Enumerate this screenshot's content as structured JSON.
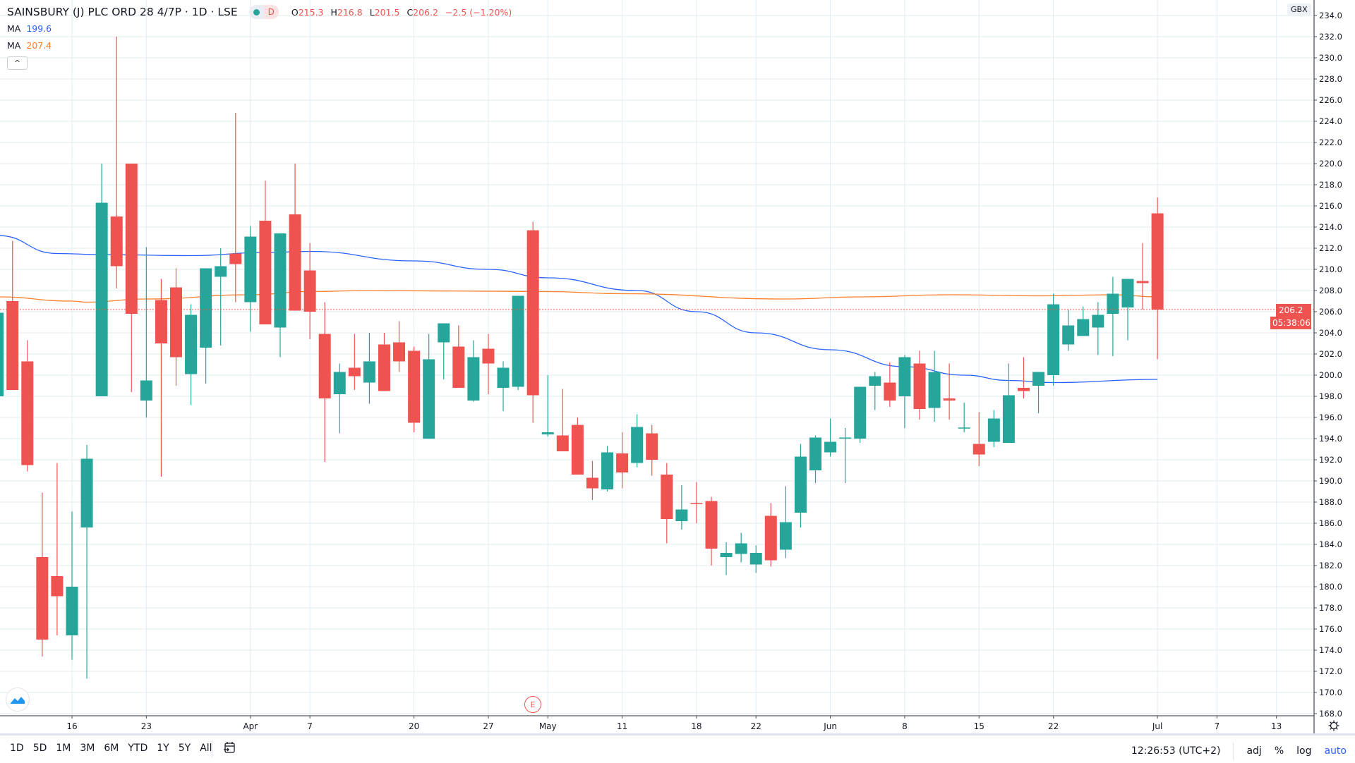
{
  "legend": {
    "title": "SAINSBURY (J) PLC ORD 28 4/7P · 1D · LSE",
    "status_letter": "D",
    "o_label": "O",
    "o_value": "215.3",
    "h_label": "H",
    "h_value": "216.8",
    "l_label": "L",
    "l_value": "201.5",
    "c_label": "C",
    "c_value": "206.2",
    "change": "−2.5 (−1.20%)",
    "ma1_label": "MA",
    "ma1_value": "199.6",
    "ma2_label": "MA",
    "ma2_value": "207.4",
    "collapse_icon": "^"
  },
  "price_axis": {
    "currency": "GBX",
    "last_price": "206.2",
    "countdown": "05:38:06"
  },
  "earnings_marker": "E",
  "toolbar": {
    "ranges": [
      "1D",
      "5D",
      "1M",
      "3M",
      "6M",
      "YTD",
      "1Y",
      "5Y",
      "All"
    ],
    "time": "12:26:53 (UTC+2)",
    "adj": "adj",
    "percent": "%",
    "log": "log",
    "auto": "auto"
  },
  "colors": {
    "up": "#26a69a",
    "down": "#ef5350",
    "ma_fast": "#2962ff",
    "ma_slow": "#ff7f27",
    "grid": "#e1ecf2"
  },
  "chart_data": {
    "type": "candlestick",
    "title": "SAINSBURY (J) PLC ORD 28 4/7P · 1D · LSE",
    "ylim": [
      167.2,
      235
    ],
    "yticks": [
      168,
      170,
      172,
      174,
      176,
      178,
      180,
      182,
      184,
      186,
      188,
      190,
      192,
      194,
      196,
      198,
      200,
      202,
      204,
      206,
      208,
      210,
      212,
      214,
      216,
      218,
      220,
      222,
      224,
      226,
      228,
      230,
      232,
      234
    ],
    "xticks": [
      {
        "index": 0,
        "label": "16"
      },
      {
        "index": 5,
        "label": "23"
      },
      {
        "index": 12,
        "label": "Apr"
      },
      {
        "index": 16,
        "label": "7"
      },
      {
        "index": 23,
        "label": "20"
      },
      {
        "index": 28,
        "label": "27"
      },
      {
        "index": 32,
        "label": "May"
      },
      {
        "index": 37,
        "label": "11"
      },
      {
        "index": 42,
        "label": "18"
      },
      {
        "index": 46,
        "label": "22"
      },
      {
        "index": 51,
        "label": "Jun"
      },
      {
        "index": 56,
        "label": "8"
      },
      {
        "index": 61,
        "label": "15"
      },
      {
        "index": 66,
        "label": "22"
      },
      {
        "index": 73,
        "label": "Jul"
      },
      {
        "index": 77,
        "label": "7"
      },
      {
        "index": 81,
        "label": "13"
      }
    ],
    "first_index": -5,
    "ohlc": [
      [
        198.0,
        206.0,
        197.5,
        205.9
      ],
      [
        207.0,
        212.7,
        198.6,
        198.6
      ],
      [
        201.3,
        203.3,
        190.9,
        191.5
      ],
      [
        182.8,
        188.9,
        173.4,
        175.0
      ],
      [
        181.0,
        191.7,
        175.4,
        179.1
      ],
      [
        175.4,
        187.1,
        173.1,
        180.0
      ],
      [
        185.6,
        193.4,
        171.3,
        192.1
      ],
      [
        198.0,
        220.0,
        198.0,
        216.3
      ],
      [
        215.0,
        232.0,
        208.2,
        210.3
      ],
      [
        220.0,
        220.0,
        198.4,
        205.8
      ],
      [
        197.6,
        212.1,
        196.0,
        199.5
      ],
      [
        207.1,
        209.1,
        190.4,
        203.0
      ],
      [
        208.3,
        210.1,
        199.0,
        201.7
      ],
      [
        200.1,
        206.7,
        197.2,
        205.7
      ],
      [
        202.6,
        210.1,
        199.2,
        210.1
      ],
      [
        209.3,
        212.0,
        202.8,
        210.3
      ],
      [
        211.5,
        224.8,
        206.9,
        210.5
      ],
      [
        206.9,
        214.1,
        204.1,
        213.1
      ],
      [
        214.6,
        218.4,
        204.8,
        204.8
      ],
      [
        204.5,
        213.4,
        201.7,
        213.4
      ],
      [
        215.2,
        220.0,
        206.1,
        206.1
      ],
      [
        209.9,
        212.5,
        203.4,
        206.0
      ],
      [
        203.9,
        206.9,
        191.8,
        197.8
      ],
      [
        198.2,
        201.1,
        194.5,
        200.3
      ],
      [
        200.7,
        203.9,
        198.6,
        199.9
      ],
      [
        199.3,
        204.0,
        197.3,
        201.3
      ],
      [
        202.9,
        204.0,
        198.5,
        198.5
      ],
      [
        203.1,
        205.1,
        200.3,
        201.3
      ],
      [
        202.3,
        202.7,
        194.6,
        195.5
      ],
      [
        194.0,
        203.9,
        194.0,
        201.5
      ],
      [
        203.1,
        204.9,
        199.6,
        204.9
      ],
      [
        202.7,
        204.7,
        198.8,
        198.8
      ],
      [
        197.6,
        203.3,
        197.5,
        201.7
      ],
      [
        202.5,
        203.9,
        198.2,
        201.1
      ],
      [
        198.8,
        201.3,
        196.6,
        200.7
      ],
      [
        198.9,
        207.5,
        198.6,
        207.5
      ],
      [
        213.7,
        214.5,
        195.5,
        198.1
      ],
      [
        194.4,
        200.0,
        194.2,
        194.6
      ],
      [
        194.3,
        198.7,
        192.8,
        192.8
      ],
      [
        195.3,
        196.0,
        190.6,
        190.6
      ],
      [
        190.3,
        191.9,
        188.2,
        189.3
      ],
      [
        189.2,
        193.3,
        189.0,
        192.7
      ],
      [
        192.6,
        194.6,
        189.3,
        190.8
      ],
      [
        191.7,
        196.3,
        191.3,
        195.1
      ],
      [
        194.5,
        195.3,
        190.5,
        192.0
      ],
      [
        190.6,
        191.7,
        184.1,
        186.4
      ],
      [
        186.2,
        189.6,
        185.4,
        187.3
      ],
      [
        187.9,
        189.9,
        186.0,
        187.85
      ],
      [
        188.1,
        188.5,
        182.0,
        183.6
      ],
      [
        182.8,
        184.2,
        181.1,
        183.2
      ],
      [
        183.1,
        185.1,
        182.3,
        184.1
      ],
      [
        182.1,
        183.9,
        181.3,
        183.2
      ],
      [
        186.7,
        187.9,
        181.9,
        182.5
      ],
      [
        183.5,
        189.5,
        182.7,
        186.1
      ],
      [
        187.0,
        193.5,
        185.6,
        192.3
      ],
      [
        191.0,
        194.3,
        189.8,
        194.1
      ],
      [
        192.7,
        195.9,
        192.3,
        193.7
      ],
      [
        194.0,
        195.0,
        189.8,
        194.1
      ],
      [
        194.0,
        198.9,
        193.6,
        198.9
      ],
      [
        199.0,
        200.3,
        196.7,
        199.9
      ],
      [
        199.3,
        201.2,
        197.0,
        197.6
      ],
      [
        198.0,
        201.9,
        195.0,
        201.7
      ],
      [
        201.1,
        202.3,
        195.8,
        196.8
      ],
      [
        196.9,
        202.3,
        195.6,
        200.3
      ],
      [
        197.8,
        201.1,
        195.8,
        197.6
      ],
      [
        195.0,
        197.4,
        194.6,
        195.05
      ],
      [
        193.5,
        196.5,
        191.4,
        192.5
      ],
      [
        193.7,
        196.7,
        193.2,
        195.9
      ],
      [
        193.6,
        201.1,
        193.6,
        198.1
      ],
      [
        198.8,
        201.7,
        197.8,
        198.5
      ],
      [
        199.0,
        200.3,
        196.4,
        200.3
      ],
      [
        200.0,
        207.7,
        199.0,
        206.7
      ],
      [
        202.9,
        206.2,
        202.3,
        204.7
      ],
      [
        203.7,
        206.5,
        203.7,
        205.3
      ],
      [
        204.5,
        206.9,
        201.9,
        205.7
      ],
      [
        205.8,
        209.3,
        201.8,
        207.7
      ],
      [
        206.4,
        209.1,
        203.3,
        209.1
      ],
      [
        208.9,
        212.5,
        206.2,
        208.7
      ],
      [
        215.3,
        216.8,
        201.5,
        206.2
      ]
    ],
    "series": [
      {
        "name": "MA",
        "value": 199.6,
        "points": [
          [
            -5,
            213.2
          ],
          [
            -1,
            211.5
          ],
          [
            2,
            211.4
          ],
          [
            8,
            211.3
          ],
          [
            13,
            211.6
          ],
          [
            16,
            211.7
          ],
          [
            23,
            210.8
          ],
          [
            28,
            210.0
          ],
          [
            32,
            209.2
          ],
          [
            38,
            208.0
          ],
          [
            42,
            206.0
          ],
          [
            46,
            204.0
          ],
          [
            51,
            202.4
          ],
          [
            56,
            200.8
          ],
          [
            60,
            200.0
          ],
          [
            63,
            199.5
          ],
          [
            66,
            199.3
          ],
          [
            73,
            199.6
          ]
        ]
      },
      {
        "name": "MA",
        "value": 207.4,
        "points": [
          [
            -5,
            207.4
          ],
          [
            0,
            207.0
          ],
          [
            1,
            206.9
          ],
          [
            5,
            207.2
          ],
          [
            12,
            207.6
          ],
          [
            16,
            207.9
          ],
          [
            20,
            208.0
          ],
          [
            32,
            207.9
          ],
          [
            37,
            207.7
          ],
          [
            48,
            207.2
          ],
          [
            53,
            207.4
          ],
          [
            59,
            207.6
          ],
          [
            65,
            207.5
          ],
          [
            70,
            207.6
          ],
          [
            73,
            207.4
          ]
        ]
      }
    ],
    "last_price_line": 206.2,
    "earnings_index": 31
  }
}
